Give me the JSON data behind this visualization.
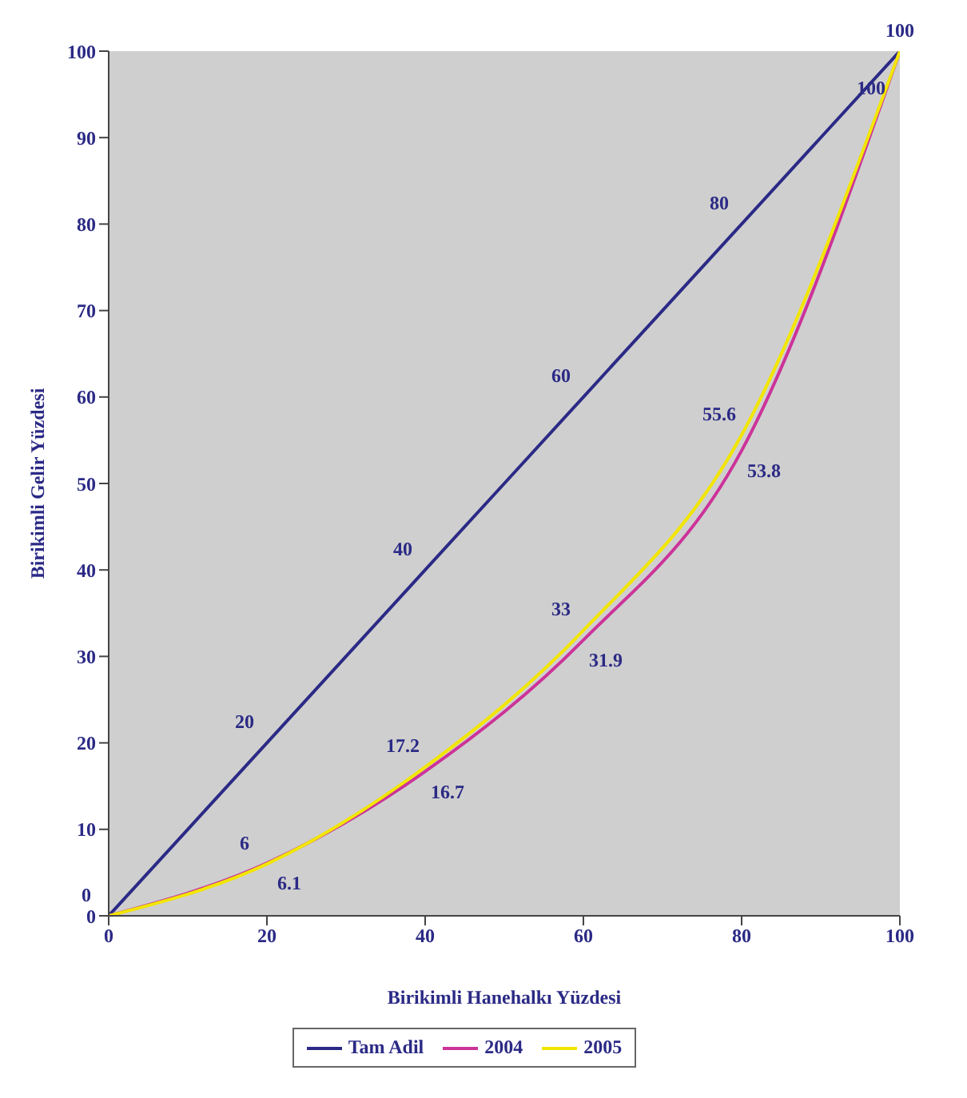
{
  "chart_data": {
    "type": "line",
    "xlabel": "Birikimli Hanehalkı Yüzdesi",
    "ylabel": "Birikimli Gelir Yüzdesi",
    "x": [
      0,
      20,
      40,
      60,
      80,
      100
    ],
    "series": [
      {
        "name": "Tam Adil",
        "color": "#2b2a86",
        "values": [
          0,
          20,
          40,
          60,
          80,
          100
        ],
        "value_labels": [
          "0",
          "20",
          "40",
          "60",
          "80",
          "100"
        ]
      },
      {
        "name": "2004",
        "color": "#cc3399",
        "values": [
          0,
          6.1,
          16.7,
          31.9,
          53.8,
          100
        ],
        "value_labels": [
          null,
          "6.1",
          "16.7",
          "31.9",
          "53.8",
          "100"
        ]
      },
      {
        "name": "2005",
        "color": "#f2e600",
        "values": [
          0,
          6,
          17.2,
          33,
          55.6,
          100
        ],
        "value_labels": [
          null,
          "6",
          "17.2",
          "33",
          "55.6",
          null
        ]
      }
    ],
    "xlim": [
      0,
      100
    ],
    "xticks": [
      0,
      20,
      40,
      60,
      80,
      100
    ],
    "ylim": [
      0,
      100
    ],
    "yticks": [
      0,
      10,
      20,
      30,
      40,
      50,
      60,
      70,
      80,
      90,
      100
    ],
    "legend": "bottom",
    "marker": "none",
    "line_style": "solid"
  }
}
